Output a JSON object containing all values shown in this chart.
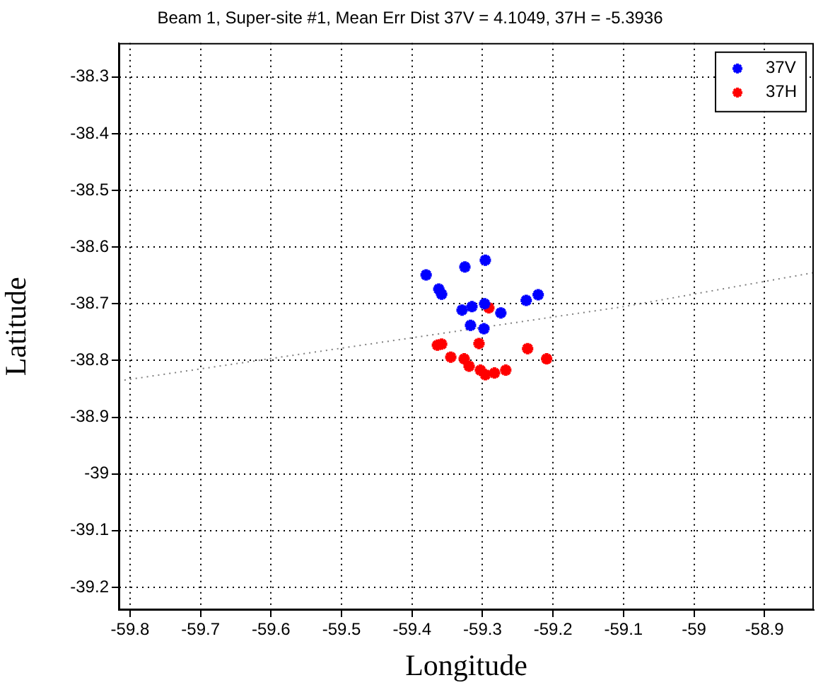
{
  "chart_data": {
    "type": "scatter",
    "title": "Beam 1, Super-site #1, Mean Err Dist 37V = 4.1049, 37H = -5.3936",
    "xlabel": "Longitude",
    "ylabel": "Latitude",
    "xlim": [
      -59.816,
      -58.83
    ],
    "xticks": [
      -59.8,
      -59.7,
      -59.6,
      -59.5,
      -59.4,
      -59.3,
      -59.2,
      -59.1,
      -59,
      -58.9
    ],
    "ylim": [
      -39.24,
      -38.24
    ],
    "yticks": [
      -39.2,
      -39.1,
      -39,
      -38.9,
      -38.8,
      -38.7,
      -38.6,
      -38.5,
      -38.4,
      -38.3
    ],
    "grid": true,
    "legend": "top right",
    "marker": "cross",
    "series": [
      {
        "name": "37V",
        "color": "#0000ff",
        "x": [
          -59.38,
          -59.325,
          -59.296,
          -59.362,
          -59.358,
          -59.329,
          -59.315,
          -59.297,
          -59.274,
          -59.317,
          -59.298,
          -59.238,
          -59.221
        ],
        "values": [
          -38.649,
          -38.635,
          -38.623,
          -38.674,
          -38.683,
          -38.711,
          -38.705,
          -38.7,
          -38.716,
          -38.738,
          -38.744,
          -38.694,
          -38.684
        ]
      },
      {
        "name": "37H",
        "color": "#ff0000",
        "x": [
          -59.291,
          -59.364,
          -59.358,
          -59.305,
          -59.345,
          -59.326,
          -59.319,
          -59.303,
          -59.296,
          -59.283,
          -59.267,
          -59.236,
          -59.209
        ],
        "values": [
          -38.707,
          -38.773,
          -38.771,
          -38.77,
          -38.794,
          -38.797,
          -38.81,
          -38.817,
          -38.825,
          -38.822,
          -38.817,
          -38.779,
          -38.797
        ]
      },
      {
        "type": "line",
        "color": "#808080",
        "line_style": "dotted",
        "marker": "none",
        "x": [
          -59.816,
          -59.428,
          -59.1,
          -58.83
        ],
        "values": [
          -38.836,
          -38.765,
          -38.705,
          -38.645
        ]
      }
    ]
  }
}
